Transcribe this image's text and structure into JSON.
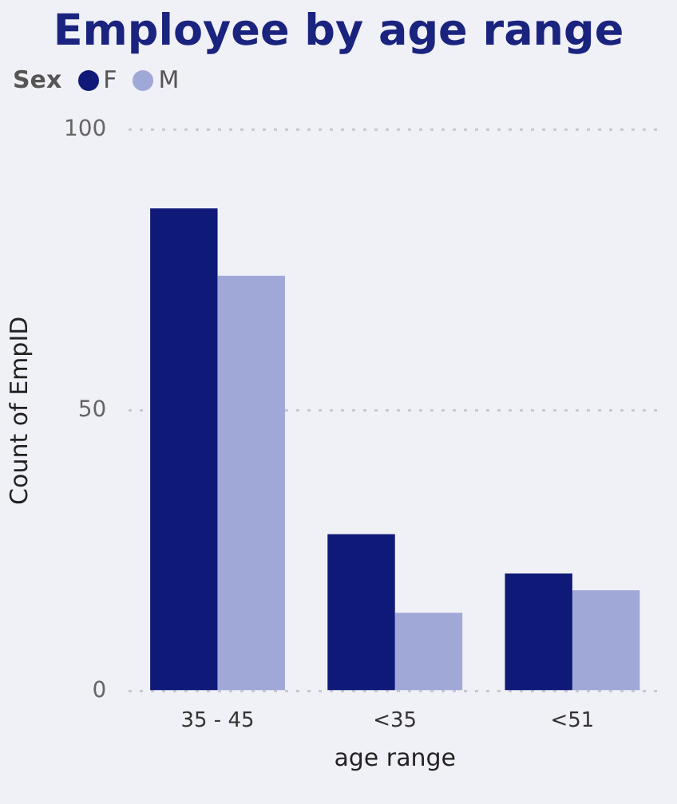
{
  "chart_data": {
    "type": "bar",
    "title": "Employee by age range",
    "xlabel": "age range",
    "ylabel": "Count of EmpID",
    "legend_title": "Sex",
    "legend": "top left",
    "categories": [
      "35 - 45",
      "<35",
      "<51"
    ],
    "series": [
      {
        "name": "F",
        "color": "#0f1a78",
        "values": [
          86,
          28,
          21
        ]
      },
      {
        "name": "M",
        "color": "#a0a8d8",
        "values": [
          74,
          14,
          18
        ]
      }
    ],
    "ylim": [
      0,
      100
    ],
    "yticks": [
      0,
      50,
      100
    ],
    "grid": "y"
  }
}
